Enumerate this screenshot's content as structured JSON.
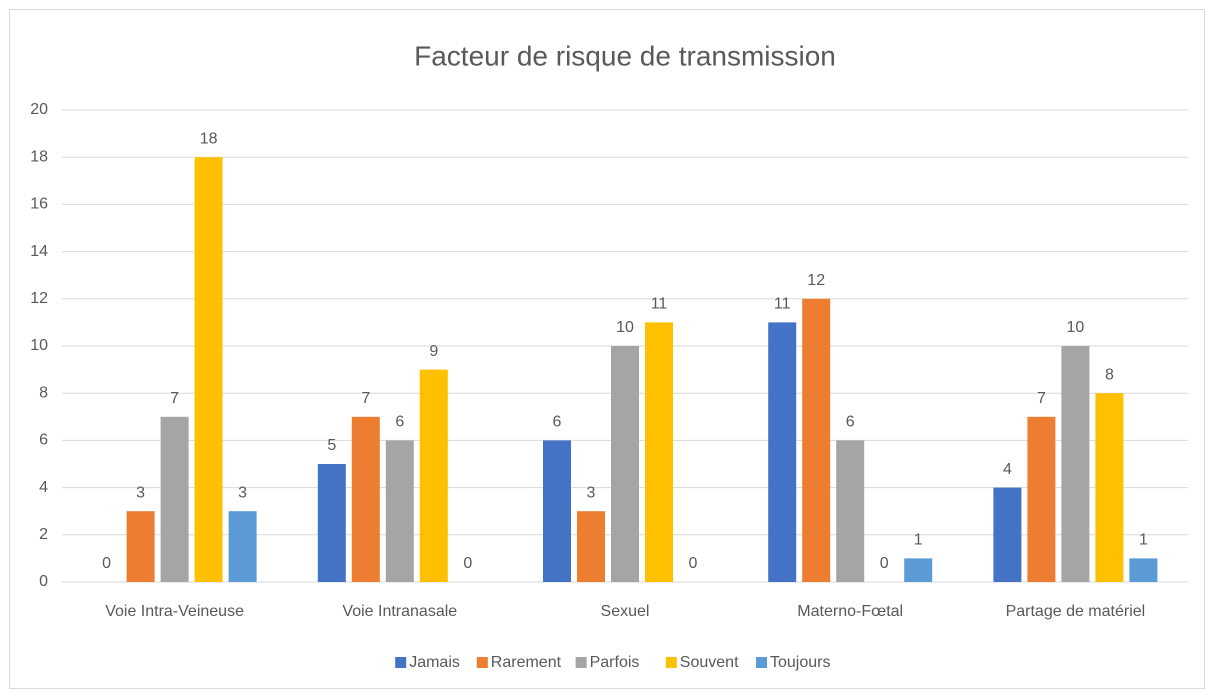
{
  "chart_data": {
    "type": "bar",
    "title": "Facteur de risque de transmission",
    "categories": [
      "Voie Intra-Veineuse",
      "Voie Intranasale",
      "Sexuel",
      "Materno-Fœtal",
      "Partage de matériel"
    ],
    "series": [
      {
        "name": "Jamais",
        "color": "#4472c4",
        "values": [
          0,
          5,
          6,
          11,
          4
        ]
      },
      {
        "name": "Rarement",
        "color": "#ed7d31",
        "values": [
          3,
          7,
          3,
          12,
          7
        ]
      },
      {
        "name": "Parfois",
        "color": "#a5a5a5",
        "values": [
          7,
          6,
          10,
          6,
          10
        ]
      },
      {
        "name": "Souvent",
        "color": "#ffc000",
        "values": [
          18,
          9,
          11,
          0,
          8
        ]
      },
      {
        "name": "Toujours",
        "color": "#5b9bd5",
        "values": [
          3,
          0,
          0,
          1,
          1
        ]
      }
    ],
    "ylim": [
      0,
      20
    ],
    "yticks": [
      0,
      2,
      4,
      6,
      8,
      10,
      12,
      14,
      16,
      18,
      20
    ],
    "grid": true,
    "legend": "bottom"
  }
}
